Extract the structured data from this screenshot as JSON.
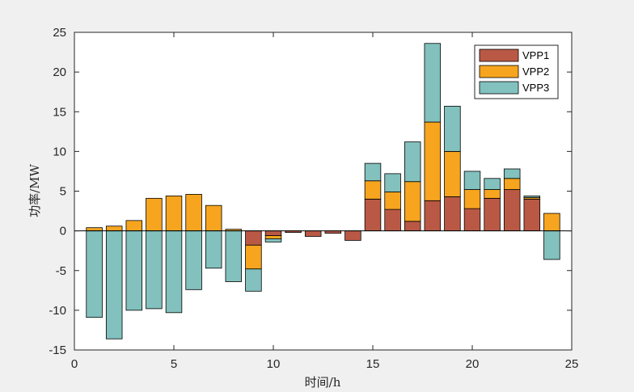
{
  "chart_data": {
    "type": "bar",
    "stacked": true,
    "title": "",
    "xlabel": "时间/h",
    "ylabel": "功率/MW",
    "xlim": [
      0,
      25
    ],
    "ylim": [
      -15,
      25
    ],
    "x_ticks": [
      0,
      5,
      10,
      15,
      20,
      25
    ],
    "y_ticks": [
      -15,
      -10,
      -5,
      0,
      5,
      10,
      15,
      20,
      25
    ],
    "grid": false,
    "legend_position": "top-right",
    "x": [
      1,
      2,
      3,
      4,
      5,
      6,
      7,
      8,
      9,
      10,
      11,
      12,
      13,
      14,
      15,
      16,
      17,
      18,
      19,
      20,
      21,
      22,
      23,
      24
    ],
    "series": [
      {
        "name": "VPP1",
        "color": "#b95945",
        "values": [
          0,
          0,
          0,
          0,
          0,
          0,
          0,
          0,
          -1.8,
          -0.6,
          -0.2,
          -0.7,
          -0.3,
          -1.2,
          4.0,
          2.7,
          1.2,
          3.8,
          4.3,
          2.8,
          4.1,
          5.2,
          4.0,
          0
        ]
      },
      {
        "name": "VPP2",
        "color": "#f7a51f",
        "values": [
          0.4,
          0.6,
          1.3,
          4.1,
          4.4,
          4.6,
          3.2,
          0.2,
          -3.0,
          -0.4,
          0,
          0,
          0,
          0,
          2.3,
          2.2,
          5.0,
          9.9,
          5.7,
          2.4,
          1.1,
          1.4,
          0.2,
          2.2
        ]
      },
      {
        "name": "VPP3",
        "color": "#82c1bd",
        "values": [
          -10.9,
          -13.6,
          -10.0,
          -9.8,
          -10.3,
          -7.4,
          -4.7,
          -6.4,
          -2.8,
          -0.4,
          0,
          0,
          0,
          0,
          2.2,
          2.3,
          5.0,
          9.9,
          5.7,
          2.3,
          1.4,
          1.2,
          0.2,
          -3.6
        ]
      }
    ]
  }
}
